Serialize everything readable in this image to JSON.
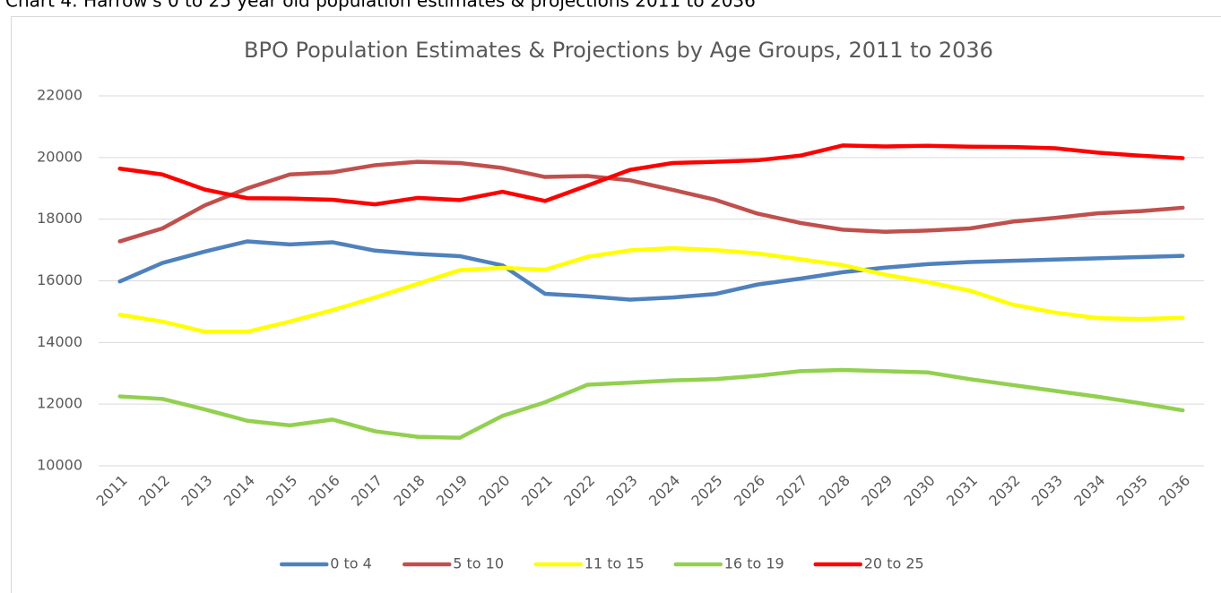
{
  "heading": "Chart 4: Harrow's 0 to 25 year old population estimates & projections 2011 to 2036",
  "chart_data": {
    "type": "line",
    "title": "BPO Population Estimates & Projections by Age Groups, 2011 to 2036",
    "categories": [
      "2011",
      "2012",
      "2013",
      "2014",
      "2015",
      "2016",
      "2017",
      "2018",
      "2019",
      "2020",
      "2021",
      "2022",
      "2023",
      "2024",
      "2025",
      "2026",
      "2027",
      "2028",
      "2029",
      "2030",
      "2031",
      "2032",
      "2033",
      "2034",
      "2035",
      "2036"
    ],
    "series": [
      {
        "name": "0 to 4",
        "color": "#4f81bd",
        "values": [
          15980,
          16580,
          16950,
          17280,
          17180,
          17250,
          16980,
          16870,
          16800,
          16500,
          15580,
          15500,
          15390,
          15460,
          15570,
          15880,
          16070,
          16280,
          16430,
          16540,
          16610,
          16650,
          16690,
          16730,
          16770,
          16810
        ]
      },
      {
        "name": "5 to 10",
        "color": "#c0504d",
        "values": [
          17280,
          17700,
          18450,
          19000,
          19450,
          19520,
          19750,
          19860,
          19820,
          19660,
          19370,
          19400,
          19260,
          18950,
          18630,
          18180,
          17880,
          17660,
          17590,
          17630,
          17700,
          17920,
          18040,
          18190,
          18260,
          18370
        ]
      },
      {
        "name": "11 to 15",
        "color": "#ffff00",
        "values": [
          14900,
          14680,
          14350,
          14350,
          14680,
          15050,
          15460,
          15900,
          16350,
          16420,
          16360,
          16780,
          16990,
          17060,
          17000,
          16890,
          16700,
          16510,
          16200,
          15960,
          15680,
          15230,
          14970,
          14790,
          14760,
          14800
        ]
      },
      {
        "name": "16 to 19",
        "color": "#92d050",
        "values": [
          12250,
          12170,
          11830,
          11460,
          11310,
          11500,
          11120,
          10940,
          10910,
          11620,
          12060,
          12630,
          12700,
          12770,
          12810,
          12920,
          13070,
          13110,
          13070,
          13030,
          12810,
          12620,
          12430,
          12240,
          12030,
          11800
        ]
      },
      {
        "name": "20 to 25",
        "color": "#ff0000",
        "values": [
          19640,
          19450,
          18960,
          18680,
          18670,
          18630,
          18480,
          18690,
          18620,
          18890,
          18590,
          19090,
          19600,
          19820,
          19860,
          19910,
          20060,
          20390,
          20360,
          20380,
          20350,
          20340,
          20300,
          20160,
          20060,
          19980
        ]
      }
    ],
    "ylim": [
      10000,
      22000
    ],
    "yticks": [
      10000,
      12000,
      14000,
      16000,
      18000,
      20000,
      22000
    ],
    "grid": true,
    "legend": "bottom"
  }
}
